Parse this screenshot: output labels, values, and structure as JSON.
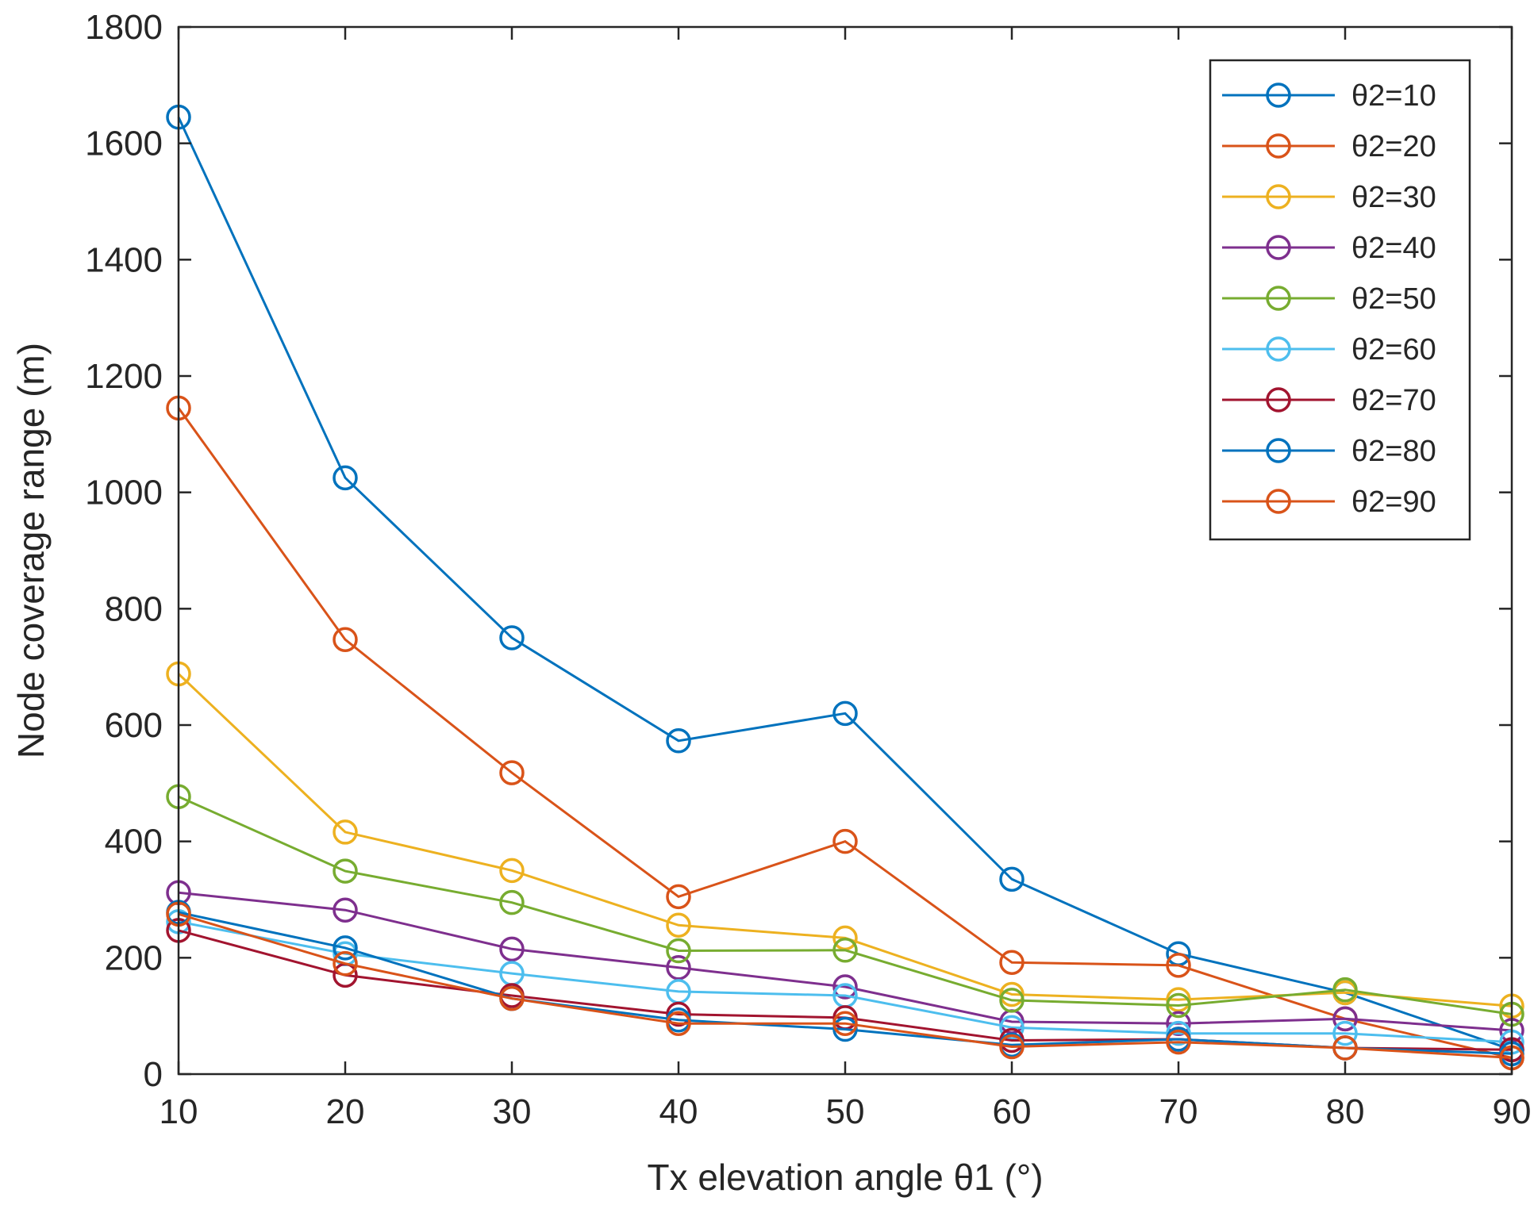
{
  "chart_data": {
    "type": "line",
    "title": "",
    "xlabel": "Tx elevation angle θ1 (°)",
    "ylabel": "Node coverage range (m)",
    "x": [
      10,
      20,
      30,
      40,
      50,
      60,
      70,
      80,
      90
    ],
    "xlim": [
      10,
      90
    ],
    "ylim": [
      0,
      1800
    ],
    "xticks": [
      10,
      20,
      30,
      40,
      50,
      60,
      70,
      80,
      90
    ],
    "yticks": [
      0,
      200,
      400,
      600,
      800,
      1000,
      1200,
      1400,
      1600,
      1800
    ],
    "grid": false,
    "legend_position": "top-right",
    "marker": "circle",
    "series": [
      {
        "name": "θ2=10",
        "color": "#0072BD",
        "values": [
          1645,
          1025,
          750,
          573,
          620,
          335,
          207,
          140,
          42
        ]
      },
      {
        "name": "θ2=20",
        "color": "#D95319",
        "values": [
          1145,
          747,
          518,
          305,
          400,
          192,
          187,
          95,
          28
        ]
      },
      {
        "name": "θ2=30",
        "color": "#EDB120",
        "values": [
          688,
          416,
          350,
          256,
          234,
          137,
          128,
          140,
          117
        ]
      },
      {
        "name": "θ2=40",
        "color": "#7E2F8E",
        "values": [
          312,
          282,
          215,
          183,
          150,
          90,
          87,
          95,
          75
        ]
      },
      {
        "name": "θ2=50",
        "color": "#77AC30",
        "values": [
          477,
          349,
          295,
          212,
          213,
          127,
          118,
          145,
          103
        ]
      },
      {
        "name": "θ2=60",
        "color": "#4DBEEE",
        "values": [
          262,
          207,
          173,
          142,
          135,
          80,
          70,
          70,
          55
        ]
      },
      {
        "name": "θ2=70",
        "color": "#A2142F",
        "values": [
          247,
          170,
          135,
          103,
          97,
          58,
          60,
          45,
          42
        ]
      },
      {
        "name": "θ2=80",
        "color": "#0072BD",
        "values": [
          278,
          217,
          130,
          93,
          77,
          50,
          60,
          45,
          35
        ]
      },
      {
        "name": "θ2=90",
        "color": "#D95319",
        "values": [
          275,
          190,
          130,
          87,
          87,
          47,
          55,
          45,
          28
        ]
      }
    ]
  }
}
